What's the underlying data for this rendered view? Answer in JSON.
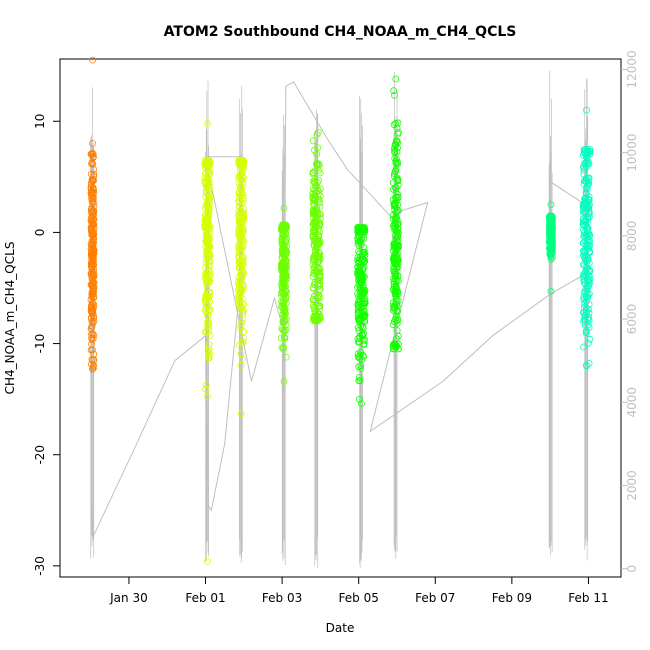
{
  "chart_data": {
    "type": "scatter",
    "title": "ATOM2 Southbound CH4_NOAA_m_CH4_QCLS",
    "xlabel": "Date",
    "ylabel": "CH4_NOAA_m_CH4_QCLS",
    "x_ticks": [
      "Jan 30",
      "Feb 01",
      "Feb 03",
      "Feb 05",
      "Feb 07",
      "Feb 09",
      "Feb 11"
    ],
    "x_tick_days": [
      30,
      32,
      34,
      36,
      38,
      40,
      42
    ],
    "xlim": [
      28.2,
      42.85
    ],
    "ylim": [
      -31,
      15.6
    ],
    "y_ticks": [
      -30,
      -20,
      -10,
      0,
      10
    ],
    "y_tick_labels": [
      "-30",
      "-20",
      "-10",
      "0",
      "10"
    ],
    "y2lim": [
      -200,
      12250
    ],
    "y2_ticks": [
      0,
      2000,
      4000,
      6000,
      8000,
      10000,
      12000
    ],
    "y2_tick_labels": [
      "0",
      "2000",
      "4000",
      "6000",
      "8000",
      "10000",
      "12000"
    ],
    "y2_color": "#bfbfbf",
    "grid": false,
    "series": [
      {
        "color": "#ff7f00",
        "day": 29.05,
        "width": 0.04,
        "median": -2,
        "low": -12.3,
        "high": 7.2,
        "outliers": [
          15.5,
          8,
          -12.3
        ]
      },
      {
        "color": "#d4ff00",
        "day": 32.05,
        "width": 0.07,
        "median": 0,
        "low": -14.5,
        "high": 6.5,
        "outliers": [
          9.8,
          -29.6,
          -14.8
        ]
      },
      {
        "color": "#d4ff00",
        "day": 32.93,
        "width": 0.07,
        "median": 0,
        "low": -16.5,
        "high": 6.5,
        "outliers": [
          -16.3,
          6.3
        ]
      },
      {
        "color": "#6dff00",
        "day": 34.05,
        "width": 0.07,
        "median": -2.5,
        "low": -13.3,
        "high": 0.7,
        "outliers": [
          2.2,
          -13.4
        ]
      },
      {
        "color": "#6dff00",
        "day": 34.9,
        "width": 0.1,
        "median": -1,
        "low": -8,
        "high": 9,
        "outliers": [
          6.2,
          -7.9
        ]
      },
      {
        "color": "#14ff00",
        "day": 36.07,
        "width": 0.1,
        "median": -4,
        "low": -15.5,
        "high": 0.5,
        "outliers": [
          -15.4
        ]
      },
      {
        "color": "#14ff00",
        "day": 36.97,
        "width": 0.07,
        "median": -1.5,
        "low": -10.5,
        "high": 12.8,
        "outliers": [
          13.8,
          6.4,
          -10.3
        ]
      },
      {
        "color": "#00ff7f",
        "day": 41.02,
        "width": 0.04,
        "median": 0,
        "low": -3,
        "high": 1.5,
        "outliers": [
          2.5,
          -5.3
        ]
      },
      {
        "color": "#00ffbf",
        "day": 41.95,
        "width": 0.09,
        "median": 0,
        "low": -12,
        "high": 7.5,
        "outliers": [
          11,
          -12
        ]
      }
    ],
    "altitude_series": {
      "axis": "right",
      "color": "#bfbfbf",
      "points": [
        [
          29.03,
          1500
        ],
        [
          29.05,
          800
        ],
        [
          29.08,
          800
        ],
        [
          30.2,
          3000
        ],
        [
          31.2,
          5000
        ],
        [
          32.0,
          5600
        ],
        [
          32.08,
          1500
        ],
        [
          32.15,
          1400
        ],
        [
          32.5,
          3000
        ],
        [
          32.9,
          6800
        ],
        [
          32.95,
          9900
        ],
        [
          32.0,
          9900
        ],
        [
          33.2,
          4500
        ],
        [
          33.8,
          6500
        ],
        [
          34.05,
          5700
        ],
        [
          34.1,
          11600
        ],
        [
          34.3,
          11700
        ],
        [
          35.2,
          10300
        ],
        [
          35.7,
          9600
        ],
        [
          36.3,
          9000
        ],
        [
          36.9,
          8400
        ],
        [
          37.0,
          8700
        ],
        [
          37.1,
          8600
        ],
        [
          37.8,
          8800
        ],
        [
          36.3,
          3300
        ],
        [
          38.2,
          4500
        ],
        [
          39.5,
          5600
        ],
        [
          41.0,
          6600
        ],
        [
          41.95,
          7100
        ],
        [
          42.0,
          8700
        ],
        [
          41.0,
          9300
        ],
        [
          41.0,
          10400
        ]
      ]
    }
  }
}
